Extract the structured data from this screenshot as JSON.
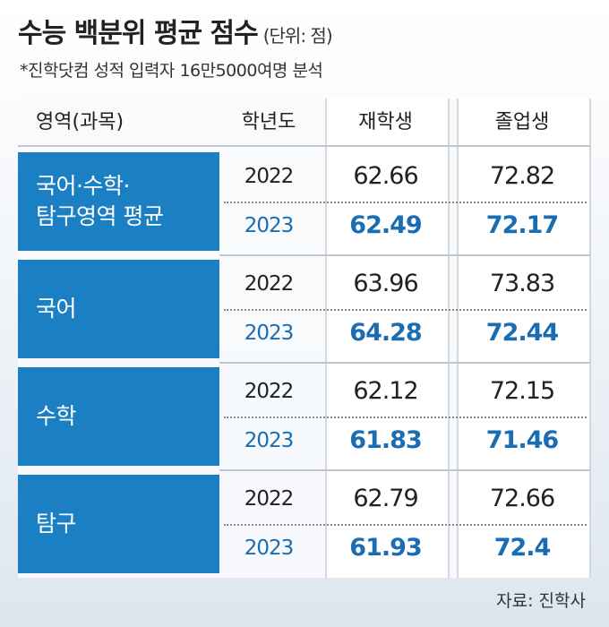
{
  "header": {
    "title": "수능 백분위 평균 점수",
    "unit": "(단위: 점)",
    "subtitle": "*진학닷컴 성적 입력자 16만5000여명 분석"
  },
  "table": {
    "columns": [
      "영역(과목)",
      "학년도",
      "재학생",
      "졸업생"
    ],
    "groups": [
      {
        "label": [
          "국어·수학·",
          "탐구영역 평균"
        ],
        "rows": [
          [
            "2022",
            "62.66",
            "72.82"
          ],
          [
            "2023",
            "62.49",
            "72.17"
          ]
        ]
      },
      {
        "label": [
          "국어"
        ],
        "rows": [
          [
            "2022",
            "63.96",
            "73.83"
          ],
          [
            "2023",
            "64.28",
            "72.44"
          ]
        ]
      },
      {
        "label": [
          "수학"
        ],
        "rows": [
          [
            "2022",
            "62.12",
            "72.15"
          ],
          [
            "2023",
            "61.83",
            "71.46"
          ]
        ]
      },
      {
        "label": [
          "탐구"
        ],
        "rows": [
          [
            "2022",
            "62.79",
            "72.66"
          ],
          [
            "2023",
            "61.93",
            "72.4"
          ]
        ]
      }
    ]
  },
  "source": "자료: 진학사"
}
